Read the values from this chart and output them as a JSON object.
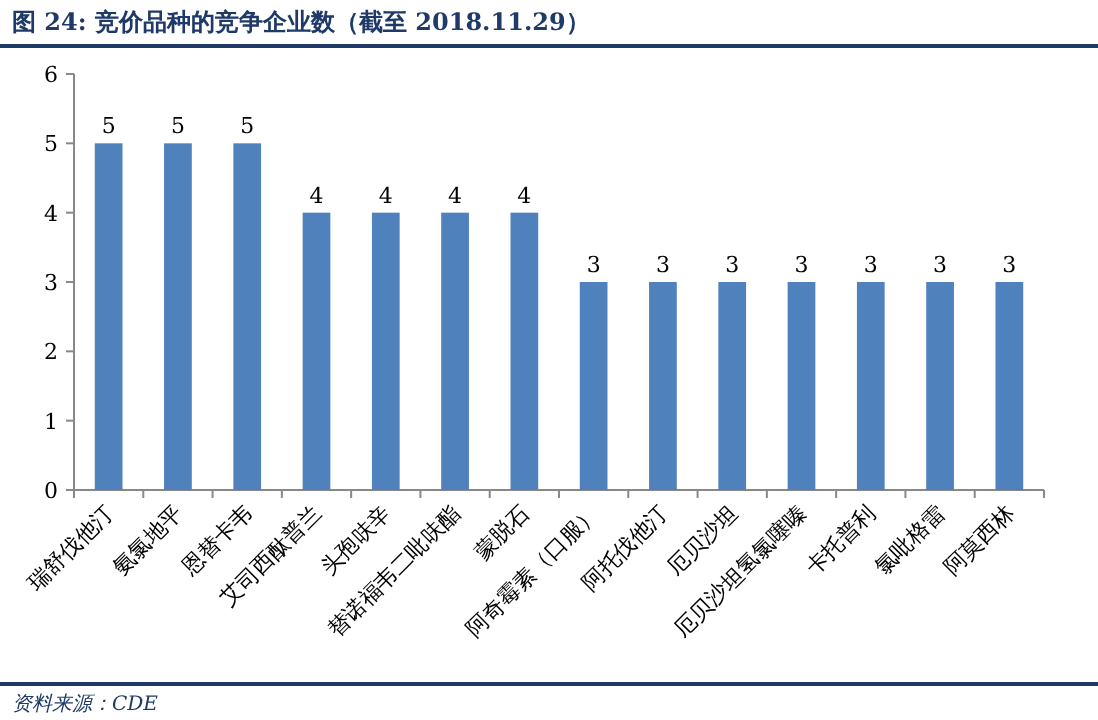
{
  "chart_data": {
    "type": "bar",
    "title": "图 24:  竞价品种的竞争企业数（截至 2018.11.29）",
    "categories": [
      "瑞舒伐他汀",
      "氨氯地平",
      "恩替卡韦",
      "艾司西酞普兰",
      "头孢呋辛",
      "替诺福韦二吡呋酯",
      "蒙脱石",
      "阿奇霉素（口服）",
      "阿托伐他汀",
      "厄贝沙坦",
      "厄贝沙坦氢氯噻嗪",
      "卡托普利",
      "氯吡格雷",
      "阿莫西林"
    ],
    "values": [
      5,
      5,
      5,
      4,
      4,
      4,
      4,
      3,
      3,
      3,
      3,
      3,
      3,
      3
    ],
    "color": "#4f81bd",
    "ylim": [
      0,
      6
    ],
    "yticks": [
      0,
      1,
      2,
      3,
      4,
      5,
      6
    ],
    "data_labels": true,
    "annotations": [
      "资料来源：CDE"
    ]
  }
}
